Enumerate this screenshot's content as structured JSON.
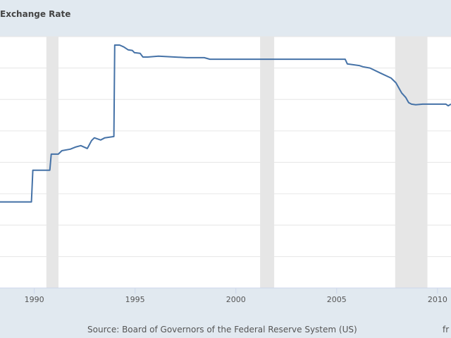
{
  "chart_data": {
    "type": "line",
    "title": "Exchange Rate",
    "xlabel": "",
    "ylabel": "",
    "xlim": [
      1988.3,
      2010.67
    ],
    "ylim": [
      1,
      9
    ],
    "x_ticks": [
      "1990",
      "1995",
      "2000",
      "2005",
      "2010"
    ],
    "y_gridlines": [
      2,
      3,
      4,
      5,
      6,
      7,
      8,
      9
    ],
    "grid": true,
    "recessions": [
      [
        1990.6,
        1991.2
      ],
      [
        2001.2,
        2001.9
      ],
      [
        2007.9,
        2009.5
      ]
    ],
    "line_color": "#4572a7",
    "recession_color": "#e6e6e6",
    "series": [
      {
        "x": [
          1988.29,
          1989.86,
          1989.93,
          1990.77,
          1990.84,
          1991.19,
          1991.37,
          1991.79,
          1992.07,
          1992.31,
          1992.63,
          1992.84,
          1992.98,
          1993.29,
          1993.5,
          1993.95,
          1993.99,
          1994.23,
          1994.44,
          1994.65,
          1994.86,
          1994.97,
          1995.25,
          1995.39,
          1995.63,
          1996.16,
          1997.56,
          1998.43,
          1998.71,
          2005.42,
          2005.53,
          2006.12,
          2006.3,
          2006.65,
          2007.17,
          2007.7,
          2007.94,
          2008.08,
          2008.22,
          2008.43,
          2008.57,
          2008.71,
          2008.92,
          2009.27,
          2010.42,
          2010.53,
          2010.67
        ],
        "y": [
          3.74,
          3.74,
          4.75,
          4.75,
          5.26,
          5.26,
          5.37,
          5.42,
          5.49,
          5.53,
          5.44,
          5.69,
          5.78,
          5.71,
          5.78,
          5.82,
          8.73,
          8.73,
          8.67,
          8.58,
          8.56,
          8.49,
          8.47,
          8.35,
          8.35,
          8.38,
          8.33,
          8.33,
          8.28,
          8.28,
          8.13,
          8.08,
          8.04,
          8.0,
          7.84,
          7.68,
          7.53,
          7.37,
          7.21,
          7.06,
          6.9,
          6.85,
          6.83,
          6.85,
          6.85,
          6.8,
          6.85
        ]
      }
    ]
  },
  "footer": {
    "source": "Source: Board of Governors of the Federal Reserve System (US)",
    "credit": "fr"
  }
}
